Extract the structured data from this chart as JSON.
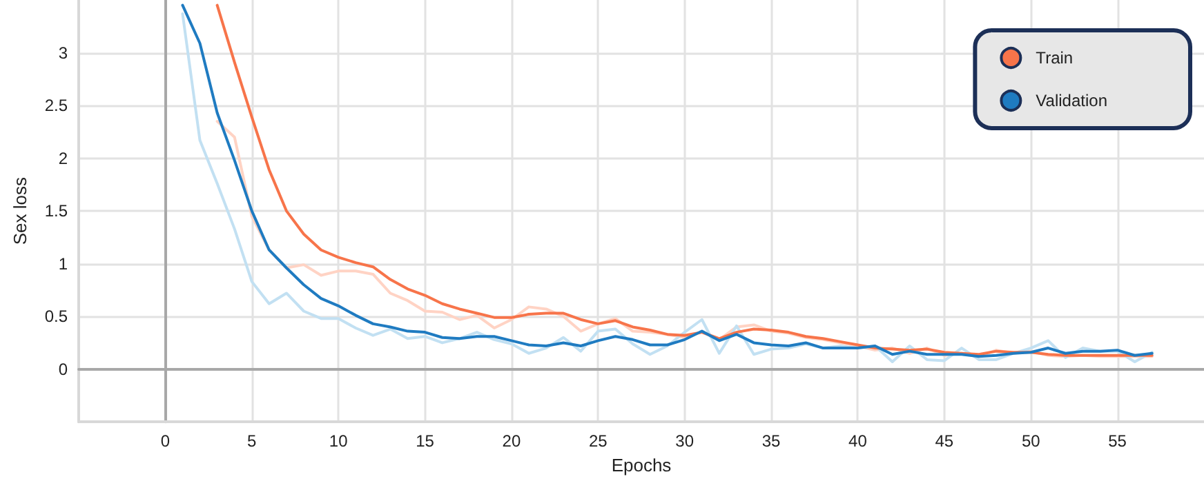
{
  "chart_data": {
    "type": "line",
    "xlabel": "Epochs",
    "ylabel": "Sex loss",
    "xlim": [
      -5,
      60
    ],
    "xticks": [
      0,
      5,
      10,
      15,
      20,
      25,
      30,
      35,
      40,
      45,
      50,
      55
    ],
    "ylim": [
      -0.5,
      3.5
    ],
    "yticks": [
      0,
      0.5,
      1,
      1.5,
      2,
      2.5,
      3
    ],
    "grid": true,
    "legend": "top right",
    "marker": "none",
    "line_style": "solid",
    "series": [
      {
        "color": "#ffd3c4",
        "x": [
          3,
          4,
          5,
          6,
          7,
          8,
          9,
          10,
          11,
          12,
          13,
          14,
          15,
          16,
          17,
          18,
          19,
          20,
          21,
          22,
          23,
          24,
          25,
          26,
          27,
          28,
          29,
          30,
          31,
          32,
          33,
          34,
          35,
          36,
          37,
          38,
          39,
          40,
          41,
          42,
          43,
          44,
          45,
          46,
          47,
          48,
          49,
          50,
          51,
          52,
          53,
          54,
          55,
          56,
          57
        ],
        "values": [
          2.35,
          2.2,
          1.45,
          1.13,
          0.96,
          0.99,
          0.89,
          0.93,
          0.93,
          0.9,
          0.72,
          0.65,
          0.55,
          0.54,
          0.47,
          0.51,
          0.39,
          0.47,
          0.59,
          0.57,
          0.5,
          0.36,
          0.43,
          0.48,
          0.36,
          0.35,
          0.33,
          0.3,
          0.35,
          0.28,
          0.4,
          0.42,
          0.36,
          0.34,
          0.3,
          0.28,
          0.25,
          0.22,
          0.18,
          0.2,
          0.15,
          0.2,
          0.13,
          0.15,
          0.12,
          0.18,
          0.15,
          0.17,
          0.13,
          0.12,
          0.13,
          0.12,
          0.12,
          0.12,
          0.12
        ]
      },
      {
        "color": "#c2e0f2",
        "x": [
          1,
          2,
          3,
          4,
          5,
          6,
          7,
          8,
          9,
          10,
          11,
          12,
          13,
          14,
          15,
          16,
          17,
          18,
          19,
          20,
          21,
          22,
          23,
          24,
          25,
          26,
          27,
          28,
          29,
          30,
          31,
          32,
          33,
          34,
          35,
          36,
          37,
          38,
          39,
          40,
          41,
          42,
          43,
          44,
          45,
          46,
          47,
          48,
          49,
          50,
          51,
          52,
          53,
          54,
          55,
          56,
          57
        ],
        "values": [
          3.37,
          2.17,
          1.76,
          1.33,
          0.83,
          0.62,
          0.72,
          0.55,
          0.48,
          0.48,
          0.39,
          0.32,
          0.38,
          0.29,
          0.31,
          0.25,
          0.29,
          0.35,
          0.28,
          0.24,
          0.15,
          0.2,
          0.3,
          0.17,
          0.36,
          0.38,
          0.24,
          0.14,
          0.22,
          0.35,
          0.47,
          0.15,
          0.41,
          0.14,
          0.19,
          0.2,
          0.24,
          0.2,
          0.22,
          0.2,
          0.22,
          0.07,
          0.22,
          0.09,
          0.08,
          0.2,
          0.09,
          0.09,
          0.15,
          0.2,
          0.27,
          0.11,
          0.2,
          0.17,
          0.17,
          0.07,
          0.16
        ]
      },
      {
        "name": "Train",
        "color": "#f7744a",
        "x": [
          3,
          4,
          5,
          6,
          7,
          8,
          9,
          10,
          11,
          12,
          13,
          14,
          15,
          16,
          17,
          18,
          19,
          20,
          21,
          22,
          23,
          24,
          25,
          26,
          27,
          28,
          29,
          30,
          31,
          32,
          33,
          34,
          35,
          36,
          37,
          38,
          39,
          40,
          41,
          42,
          43,
          44,
          45,
          46,
          47,
          48,
          49,
          50,
          51,
          52,
          53,
          54,
          55,
          56,
          57
        ],
        "values": [
          3.45,
          2.91,
          2.39,
          1.89,
          1.5,
          1.28,
          1.13,
          1.06,
          1.01,
          0.97,
          0.85,
          0.76,
          0.7,
          0.62,
          0.57,
          0.53,
          0.49,
          0.49,
          0.52,
          0.53,
          0.53,
          0.47,
          0.43,
          0.46,
          0.4,
          0.37,
          0.33,
          0.32,
          0.35,
          0.29,
          0.35,
          0.38,
          0.37,
          0.35,
          0.31,
          0.29,
          0.26,
          0.23,
          0.2,
          0.19,
          0.18,
          0.19,
          0.16,
          0.15,
          0.14,
          0.17,
          0.16,
          0.16,
          0.14,
          0.13,
          0.13,
          0.13,
          0.13,
          0.13,
          0.13
        ]
      },
      {
        "name": "Validation",
        "color": "#1f7bc1",
        "x": [
          1,
          2,
          3,
          4,
          5,
          6,
          7,
          8,
          9,
          10,
          11,
          12,
          13,
          14,
          15,
          16,
          17,
          18,
          19,
          20,
          21,
          22,
          23,
          24,
          25,
          26,
          27,
          28,
          29,
          30,
          31,
          32,
          33,
          34,
          35,
          36,
          37,
          38,
          39,
          40,
          41,
          42,
          43,
          44,
          45,
          46,
          47,
          48,
          49,
          50,
          51,
          52,
          53,
          54,
          55,
          56,
          57
        ],
        "values": [
          3.45,
          3.09,
          2.43,
          1.98,
          1.5,
          1.13,
          0.96,
          0.8,
          0.67,
          0.6,
          0.51,
          0.43,
          0.4,
          0.36,
          0.35,
          0.3,
          0.29,
          0.31,
          0.31,
          0.27,
          0.23,
          0.22,
          0.25,
          0.22,
          0.27,
          0.31,
          0.28,
          0.23,
          0.23,
          0.28,
          0.36,
          0.27,
          0.33,
          0.25,
          0.23,
          0.22,
          0.25,
          0.2,
          0.2,
          0.2,
          0.22,
          0.14,
          0.17,
          0.14,
          0.14,
          0.14,
          0.12,
          0.13,
          0.15,
          0.16,
          0.2,
          0.15,
          0.17,
          0.17,
          0.18,
          0.13,
          0.15
        ]
      }
    ]
  }
}
